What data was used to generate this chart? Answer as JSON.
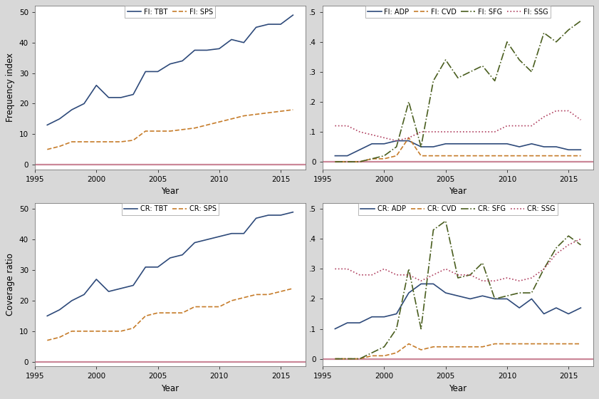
{
  "years": [
    1996,
    1997,
    1998,
    1999,
    2000,
    2001,
    2002,
    2003,
    2004,
    2005,
    2006,
    2007,
    2008,
    2009,
    2010,
    2011,
    2012,
    2013,
    2014,
    2015,
    2016
  ],
  "fi_tbt": [
    13,
    15,
    18,
    20,
    26,
    22,
    22,
    23,
    30.5,
    30.5,
    33,
    34,
    37.5,
    37.5,
    38,
    41,
    40,
    45,
    46,
    46,
    49
  ],
  "fi_sps": [
    5,
    6,
    7.5,
    7.5,
    7.5,
    7.5,
    7.5,
    8,
    11,
    11,
    11,
    11.5,
    12,
    13,
    14,
    15,
    16,
    16.5,
    17,
    17.5,
    18
  ],
  "fi_adp": [
    0.02,
    0.02,
    0.04,
    0.06,
    0.06,
    0.07,
    0.07,
    0.05,
    0.05,
    0.06,
    0.06,
    0.06,
    0.06,
    0.06,
    0.06,
    0.05,
    0.06,
    0.05,
    0.05,
    0.04,
    0.04
  ],
  "fi_cvd": [
    0.0,
    0.0,
    0.0,
    0.01,
    0.01,
    0.02,
    0.08,
    0.02,
    0.02,
    0.02,
    0.02,
    0.02,
    0.02,
    0.02,
    0.02,
    0.02,
    0.02,
    0.02,
    0.02,
    0.02,
    0.02
  ],
  "fi_sfg": [
    0.0,
    0.0,
    0.0,
    0.01,
    0.02,
    0.05,
    0.2,
    0.05,
    0.27,
    0.34,
    0.28,
    0.3,
    0.32,
    0.27,
    0.4,
    0.34,
    0.3,
    0.43,
    0.4,
    0.44,
    0.47
  ],
  "fi_ssg": [
    0.12,
    0.12,
    0.1,
    0.09,
    0.08,
    0.07,
    0.08,
    0.1,
    0.1,
    0.1,
    0.1,
    0.1,
    0.1,
    0.1,
    0.12,
    0.12,
    0.12,
    0.15,
    0.17,
    0.17,
    0.14
  ],
  "cr_tbt": [
    15,
    17,
    20,
    22,
    27,
    23,
    24,
    25,
    31,
    31,
    34,
    35,
    39,
    40,
    41,
    42,
    42,
    47,
    48,
    48,
    49
  ],
  "cr_sps": [
    7,
    8,
    10,
    10,
    10,
    10,
    10,
    11,
    15,
    16,
    16,
    16,
    18,
    18,
    18,
    20,
    21,
    22,
    22,
    23,
    24
  ],
  "cr_adp": [
    0.1,
    0.12,
    0.12,
    0.14,
    0.14,
    0.15,
    0.22,
    0.25,
    0.25,
    0.22,
    0.21,
    0.2,
    0.21,
    0.2,
    0.2,
    0.17,
    0.2,
    0.15,
    0.17,
    0.15,
    0.17
  ],
  "cr_cvd": [
    0.0,
    0.0,
    0.0,
    0.01,
    0.01,
    0.02,
    0.05,
    0.03,
    0.04,
    0.04,
    0.04,
    0.04,
    0.04,
    0.05,
    0.05,
    0.05,
    0.05,
    0.05,
    0.05,
    0.05,
    0.05
  ],
  "cr_sfg": [
    0.0,
    0.0,
    0.0,
    0.02,
    0.04,
    0.1,
    0.3,
    0.1,
    0.43,
    0.46,
    0.27,
    0.28,
    0.32,
    0.2,
    0.21,
    0.22,
    0.22,
    0.3,
    0.37,
    0.41,
    0.38
  ],
  "cr_ssg": [
    0.3,
    0.3,
    0.28,
    0.28,
    0.3,
    0.28,
    0.28,
    0.26,
    0.28,
    0.3,
    0.28,
    0.28,
    0.26,
    0.26,
    0.27,
    0.26,
    0.27,
    0.3,
    0.35,
    0.38,
    0.4
  ],
  "color_tbt": "#2e4a7a",
  "color_sps": "#c67c2a",
  "color_adp": "#2e4a7a",
  "color_cvd": "#c67c2a",
  "color_sfg": "#4a5e1f",
  "color_ssg": "#b04060",
  "zero_line_pink": "#cc8899",
  "zero_line_gray": "#aaaaaa",
  "outer_bg": "#d8d8d8",
  "inner_bg": "#ffffff"
}
